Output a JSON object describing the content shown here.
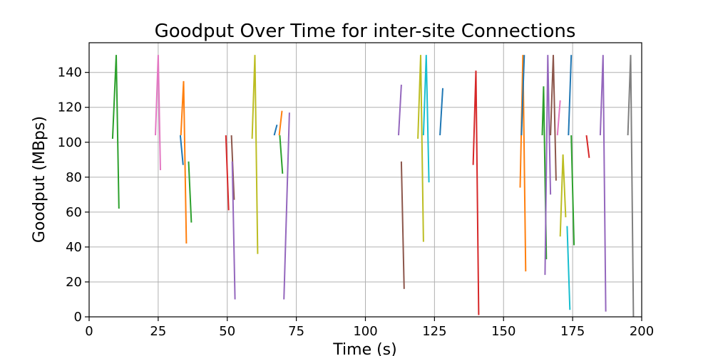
{
  "chart_data": {
    "type": "line",
    "title": "Goodput Over Time for inter-site Connections",
    "xlabel": "Time (s)",
    "ylabel": "Goodput (MBps)",
    "xlim": [
      0,
      200
    ],
    "ylim": [
      0,
      157
    ],
    "xticks": [
      0,
      25,
      50,
      75,
      100,
      125,
      150,
      175,
      200
    ],
    "yticks": [
      0,
      20,
      40,
      60,
      80,
      100,
      120,
      140
    ],
    "grid": true,
    "series": [
      {
        "color": "#2ca02c",
        "x": [
          8.5,
          9.8,
          10.8
        ],
        "y": [
          102,
          150,
          62
        ]
      },
      {
        "color": "#e377c2",
        "x": [
          24,
          25,
          25.8
        ],
        "y": [
          104,
          150,
          84
        ]
      },
      {
        "color": "#1f77b4",
        "x": [
          33,
          34
        ],
        "y": [
          104,
          87
        ]
      },
      {
        "color": "#ff7f0e",
        "x": [
          33.2,
          34.2,
          35.2
        ],
        "y": [
          104,
          135,
          42
        ]
      },
      {
        "color": "#2ca02c",
        "x": [
          36,
          37
        ],
        "y": [
          89,
          54
        ]
      },
      {
        "color": "#d62728",
        "x": [
          49.5,
          50.5
        ],
        "y": [
          104,
          61
        ]
      },
      {
        "color": "#8c564b",
        "x": [
          51.5,
          52.5
        ],
        "y": [
          104,
          67
        ]
      },
      {
        "color": "#9467bd",
        "x": [
          51.8,
          52.8
        ],
        "y": [
          89,
          10
        ]
      },
      {
        "color": "#bcbd22",
        "x": [
          59,
          60,
          61
        ],
        "y": [
          102,
          150,
          36
        ]
      },
      {
        "color": "#1f77b4",
        "x": [
          67,
          68
        ],
        "y": [
          104,
          110
        ]
      },
      {
        "color": "#ff7f0e",
        "x": [
          68.8,
          69.8
        ],
        "y": [
          104,
          118
        ]
      },
      {
        "color": "#2ca02c",
        "x": [
          69,
          70
        ],
        "y": [
          104,
          82
        ]
      },
      {
        "color": "#9467bd",
        "x": [
          70.5,
          72.5
        ],
        "y": [
          10,
          117
        ]
      },
      {
        "color": "#9467bd",
        "x": [
          112,
          113
        ],
        "y": [
          104,
          133
        ]
      },
      {
        "color": "#8c564b",
        "x": [
          113,
          114
        ],
        "y": [
          89,
          16
        ]
      },
      {
        "color": "#bcbd22",
        "x": [
          119,
          120,
          121
        ],
        "y": [
          102,
          150,
          43
        ]
      },
      {
        "color": "#17becf",
        "x": [
          121,
          122,
          123
        ],
        "y": [
          104,
          150,
          77
        ]
      },
      {
        "color": "#1f77b4",
        "x": [
          127,
          128
        ],
        "y": [
          104,
          131
        ]
      },
      {
        "color": "#d62728",
        "x": [
          139,
          140,
          141
        ],
        "y": [
          87,
          141,
          1
        ]
      },
      {
        "color": "#ff7f0e",
        "x": [
          156,
          157,
          158
        ],
        "y": [
          74,
          150,
          26
        ]
      },
      {
        "color": "#1f77b4",
        "x": [
          156.5,
          157.5
        ],
        "y": [
          104,
          150
        ]
      },
      {
        "color": "#2ca02c",
        "x": [
          164,
          164.5,
          165.5
        ],
        "y": [
          104,
          132,
          33
        ]
      },
      {
        "color": "#9467bd",
        "x": [
          165,
          166,
          167
        ],
        "y": [
          24,
          150,
          70
        ]
      },
      {
        "color": "#8c564b",
        "x": [
          167,
          168,
          169
        ],
        "y": [
          104,
          150,
          78
        ]
      },
      {
        "color": "#e377c2",
        "x": [
          169.5,
          170.5
        ],
        "y": [
          104,
          124
        ]
      },
      {
        "color": "#bcbd22",
        "x": [
          170.5,
          171.5,
          172.5
        ],
        "y": [
          46,
          93,
          57
        ]
      },
      {
        "color": "#17becf",
        "x": [
          173,
          174
        ],
        "y": [
          52,
          4
        ]
      },
      {
        "color": "#1f77b4",
        "x": [
          173.5,
          174.5
        ],
        "y": [
          104,
          150
        ]
      },
      {
        "color": "#2ca02c",
        "x": [
          174.5,
          175.5
        ],
        "y": [
          104,
          41
        ]
      },
      {
        "color": "#d62728",
        "x": [
          180,
          181
        ],
        "y": [
          104,
          91
        ]
      },
      {
        "color": "#9467bd",
        "x": [
          185,
          186,
          187
        ],
        "y": [
          104,
          150,
          3
        ]
      },
      {
        "color": "#7f7f7f",
        "x": [
          195,
          196,
          197
        ],
        "y": [
          104,
          150,
          0
        ]
      }
    ]
  }
}
